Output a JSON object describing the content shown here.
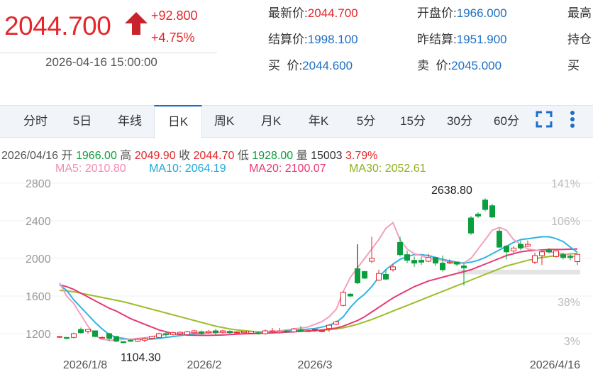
{
  "quote": {
    "price": "2044.700",
    "change": "+92.800",
    "change_pct": "+4.75%",
    "datetime": "2026-04-16 15:00:00",
    "colors": {
      "up": "#e5262b",
      "down": "#0a9e3c",
      "value": "#1d6fc4"
    },
    "fields": [
      {
        "label": "最新价:",
        "value": "2044.700",
        "red": true
      },
      {
        "label": "开盘价:",
        "value": "1966.000"
      },
      {
        "label": "最高",
        "value": ""
      },
      {
        "label": "结算价:",
        "value": "1998.100"
      },
      {
        "label": "昨结算:",
        "value": "1951.900"
      },
      {
        "label": "持仓",
        "value": ""
      },
      {
        "label": "买  价:",
        "value": "2044.600"
      },
      {
        "label": "卖  价:",
        "value": "2045.000"
      },
      {
        "label": "买",
        "value": ""
      }
    ]
  },
  "tabs": [
    "分时",
    "5日",
    "年线",
    "日K",
    "周K",
    "月K",
    "年K",
    "5分",
    "15分",
    "30分",
    "60分"
  ],
  "active_tab": "日K",
  "icons": {
    "fullscreen": "fullscreen-icon",
    "more": "more-vertical-icon"
  },
  "info": {
    "date": "2026/04/16",
    "open_label": "开",
    "open": "1966.00",
    "high_label": "高",
    "high": "2049.90",
    "close_label": "收",
    "close": "2044.70",
    "low_label": "低",
    "low": "1928.00",
    "vol_label": "量",
    "vol": "15003",
    "pct": "3.79%",
    "ma5": "MA5: 2010.80",
    "ma10": "MA10: 2064.19",
    "ma20": "MA20: 2100.07",
    "ma30": "MA30: 2052.61"
  },
  "chart_data": {
    "type": "candlestick",
    "y_ticks": [
      "2800",
      "2400",
      "2000",
      "1600",
      "1200"
    ],
    "y_range": [
      1050,
      2880
    ],
    "pct_ticks": [
      "141%",
      "106%",
      "38%",
      "3%"
    ],
    "x_labels": [
      "2026/1/8",
      "2026/2",
      "2026/3",
      "2026/4/16"
    ],
    "annotations": {
      "max": "2638.80",
      "min": "1104.30"
    },
    "ma_colors": {
      "ma5": "#f3a0bf",
      "ma10": "#2bb5e5",
      "ma20": "#e63a72",
      "ma30": "#9dbd2a"
    },
    "candles": [
      [
        1167,
        1169,
        1155,
        1175
      ],
      [
        1160,
        1150,
        1140,
        1165
      ],
      [
        1160,
        1200,
        1150,
        1210
      ],
      [
        1245,
        1210,
        1200,
        1265
      ],
      [
        1225,
        1245,
        1200,
        1250
      ],
      [
        1230,
        1170,
        1160,
        1235
      ],
      [
        1160,
        1160,
        1150,
        1170
      ],
      [
        1200,
        1150,
        1120,
        1210
      ],
      [
        1170,
        1120,
        1110,
        1175
      ],
      [
        1115,
        1104,
        1100,
        1120
      ],
      [
        1130,
        1120,
        1110,
        1140
      ],
      [
        1120,
        1140,
        1110,
        1150
      ],
      [
        1130,
        1150,
        1110,
        1160
      ],
      [
        1150,
        1170,
        1140,
        1175
      ],
      [
        1160,
        1200,
        1150,
        1210
      ],
      [
        1200,
        1190,
        1170,
        1220
      ],
      [
        1190,
        1210,
        1180,
        1220
      ],
      [
        1200,
        1215,
        1190,
        1225
      ],
      [
        1190,
        1220,
        1180,
        1230
      ],
      [
        1210,
        1230,
        1200,
        1240
      ],
      [
        1220,
        1200,
        1190,
        1235
      ],
      [
        1210,
        1225,
        1200,
        1240
      ],
      [
        1230,
        1210,
        1190,
        1250
      ],
      [
        1215,
        1230,
        1200,
        1240
      ],
      [
        1225,
        1210,
        1200,
        1235
      ],
      [
        1210,
        1215,
        1200,
        1225
      ],
      [
        1210,
        1225,
        1200,
        1230
      ],
      [
        1205,
        1225,
        1195,
        1230
      ],
      [
        1210,
        1200,
        1190,
        1220
      ],
      [
        1200,
        1230,
        1190,
        1245
      ],
      [
        1220,
        1230,
        1210,
        1260
      ],
      [
        1210,
        1225,
        1200,
        1260
      ],
      [
        1230,
        1220,
        1210,
        1240
      ],
      [
        1220,
        1250,
        1210,
        1260
      ],
      [
        1240,
        1230,
        1220,
        1280
      ],
      [
        1230,
        1230,
        1220,
        1240
      ],
      [
        1240,
        1245,
        1220,
        1255
      ],
      [
        1225,
        1230,
        1215,
        1235
      ],
      [
        1255,
        1290,
        1220,
        1300
      ],
      [
        1300,
        1325,
        1290,
        1340
      ],
      [
        1500,
        1640,
        1490,
        1650
      ],
      [
        1620,
        1600,
        1590,
        1630
      ],
      [
        1890,
        1740,
        1730,
        2150
      ],
      [
        1860,
        1790,
        1780,
        1870
      ],
      [
        1970,
        2000,
        1950,
        2230
      ],
      [
        1770,
        1840,
        1760,
        1880
      ],
      [
        1830,
        1780,
        1770,
        1880
      ],
      [
        1880,
        1910,
        1860,
        1940
      ],
      [
        2170,
        2040,
        2020,
        2230
      ],
      [
        2040,
        1980,
        1950,
        2080
      ],
      [
        1980,
        1950,
        1910,
        2020
      ],
      [
        1980,
        1960,
        1930,
        2020
      ],
      [
        1970,
        2010,
        1960,
        2050
      ],
      [
        2010,
        1950,
        1920,
        2020
      ],
      [
        1950,
        1880,
        1860,
        2030
      ],
      [
        1950,
        1960,
        1940,
        1990
      ],
      [
        1960,
        1940,
        1920,
        1960
      ],
      [
        1920,
        1900,
        1710,
        1960
      ],
      [
        2430,
        2270,
        2250,
        2450
      ],
      [
        2470,
        2450,
        2430,
        2490
      ],
      [
        2620,
        2520,
        2500,
        2640
      ],
      [
        2560,
        2440,
        2430,
        2580
      ],
      [
        2290,
        2120,
        2110,
        2320
      ],
      [
        2130,
        2070,
        1990,
        2140
      ],
      [
        2080,
        2110,
        2060,
        2130
      ],
      [
        2150,
        2110,
        2090,
        2190
      ],
      [
        2130,
        2150,
        2120,
        2190
      ],
      [
        1960,
        2030,
        1940,
        2060
      ],
      [
        2030,
        2070,
        1930,
        2090
      ],
      [
        2090,
        2070,
        2050,
        2110
      ],
      [
        2020,
        2080,
        2010,
        2080
      ],
      [
        2040,
        2010,
        1990,
        2060
      ],
      [
        2020,
        2010,
        1980,
        2040
      ],
      [
        1966,
        2044,
        1928,
        2049
      ]
    ],
    "ma5": [
      1740,
      1600,
      1520,
      1400,
      1280,
      1180,
      1140,
      1130,
      1132,
      1140,
      1142,
      1150,
      1156,
      1170,
      1180,
      1190,
      1200,
      1205,
      1210,
      1212,
      1214,
      1212,
      1214,
      1215,
      1215,
      1217,
      1220,
      1220,
      1218,
      1220,
      1225,
      1230,
      1240,
      1250,
      1260,
      1270,
      1300,
      1330,
      1380,
      1460,
      1650,
      1800,
      1900,
      2000,
      2100,
      2200,
      2320,
      2380,
      2200,
      2100,
      2050,
      2030,
      2000,
      1990,
      1980,
      1960,
      1940,
      1950,
      2000,
      2100,
      2200,
      2300,
      2330,
      2300,
      2200,
      2150,
      2100,
      2090,
      2080,
      2070,
      2060,
      2050,
      2030,
      2011
    ],
    "ma10": [
      1720,
      1660,
      1560,
      1480,
      1400,
      1320,
      1250,
      1190,
      1160,
      1150,
      1140,
      1140,
      1140,
      1142,
      1150,
      1160,
      1170,
      1180,
      1190,
      1198,
      1206,
      1210,
      1214,
      1214,
      1215,
      1217,
      1220,
      1220,
      1220,
      1220,
      1222,
      1225,
      1228,
      1232,
      1240,
      1248,
      1255,
      1270,
      1290,
      1320,
      1380,
      1480,
      1560,
      1620,
      1700,
      1800,
      1880,
      1940,
      1990,
      2020,
      2040,
      2040,
      2030,
      2010,
      1990,
      1975,
      1960,
      1950,
      1960,
      1980,
      2010,
      2050,
      2090,
      2130,
      2170,
      2200,
      2210,
      2220,
      2230,
      2230,
      2210,
      2180,
      2120,
      2064
    ],
    "ma20": [
      1720,
      1700,
      1670,
      1630,
      1590,
      1550,
      1510,
      1470,
      1440,
      1400,
      1360,
      1330,
      1300,
      1270,
      1240,
      1220,
      1200,
      1190,
      1185,
      1183,
      1182,
      1182,
      1184,
      1186,
      1190,
      1194,
      1198,
      1200,
      1202,
      1205,
      1208,
      1212,
      1216,
      1220,
      1224,
      1228,
      1232,
      1240,
      1250,
      1260,
      1280,
      1310,
      1340,
      1380,
      1430,
      1480,
      1530,
      1580,
      1620,
      1660,
      1700,
      1730,
      1760,
      1780,
      1800,
      1820,
      1840,
      1860,
      1880,
      1910,
      1940,
      1970,
      2000,
      2030,
      2050,
      2070,
      2080,
      2085,
      2090,
      2095,
      2095,
      2095,
      2098,
      2100
    ],
    "ma30": [
      1660,
      1655,
      1645,
      1630,
      1615,
      1600,
      1585,
      1570,
      1555,
      1540,
      1520,
      1500,
      1480,
      1460,
      1440,
      1420,
      1400,
      1380,
      1360,
      1340,
      1320,
      1300,
      1280,
      1265,
      1250,
      1240,
      1232,
      1226,
      1222,
      1220,
      1220,
      1220,
      1222,
      1224,
      1226,
      1228,
      1232,
      1236,
      1242,
      1250,
      1262,
      1280,
      1300,
      1325,
      1350,
      1380,
      1410,
      1440,
      1470,
      1500,
      1530,
      1560,
      1590,
      1620,
      1650,
      1680,
      1710,
      1740,
      1770,
      1800,
      1830,
      1860,
      1890,
      1920,
      1940,
      1960,
      1980,
      1995,
      2010,
      2020,
      2030,
      2040,
      2048,
      2053
    ]
  }
}
